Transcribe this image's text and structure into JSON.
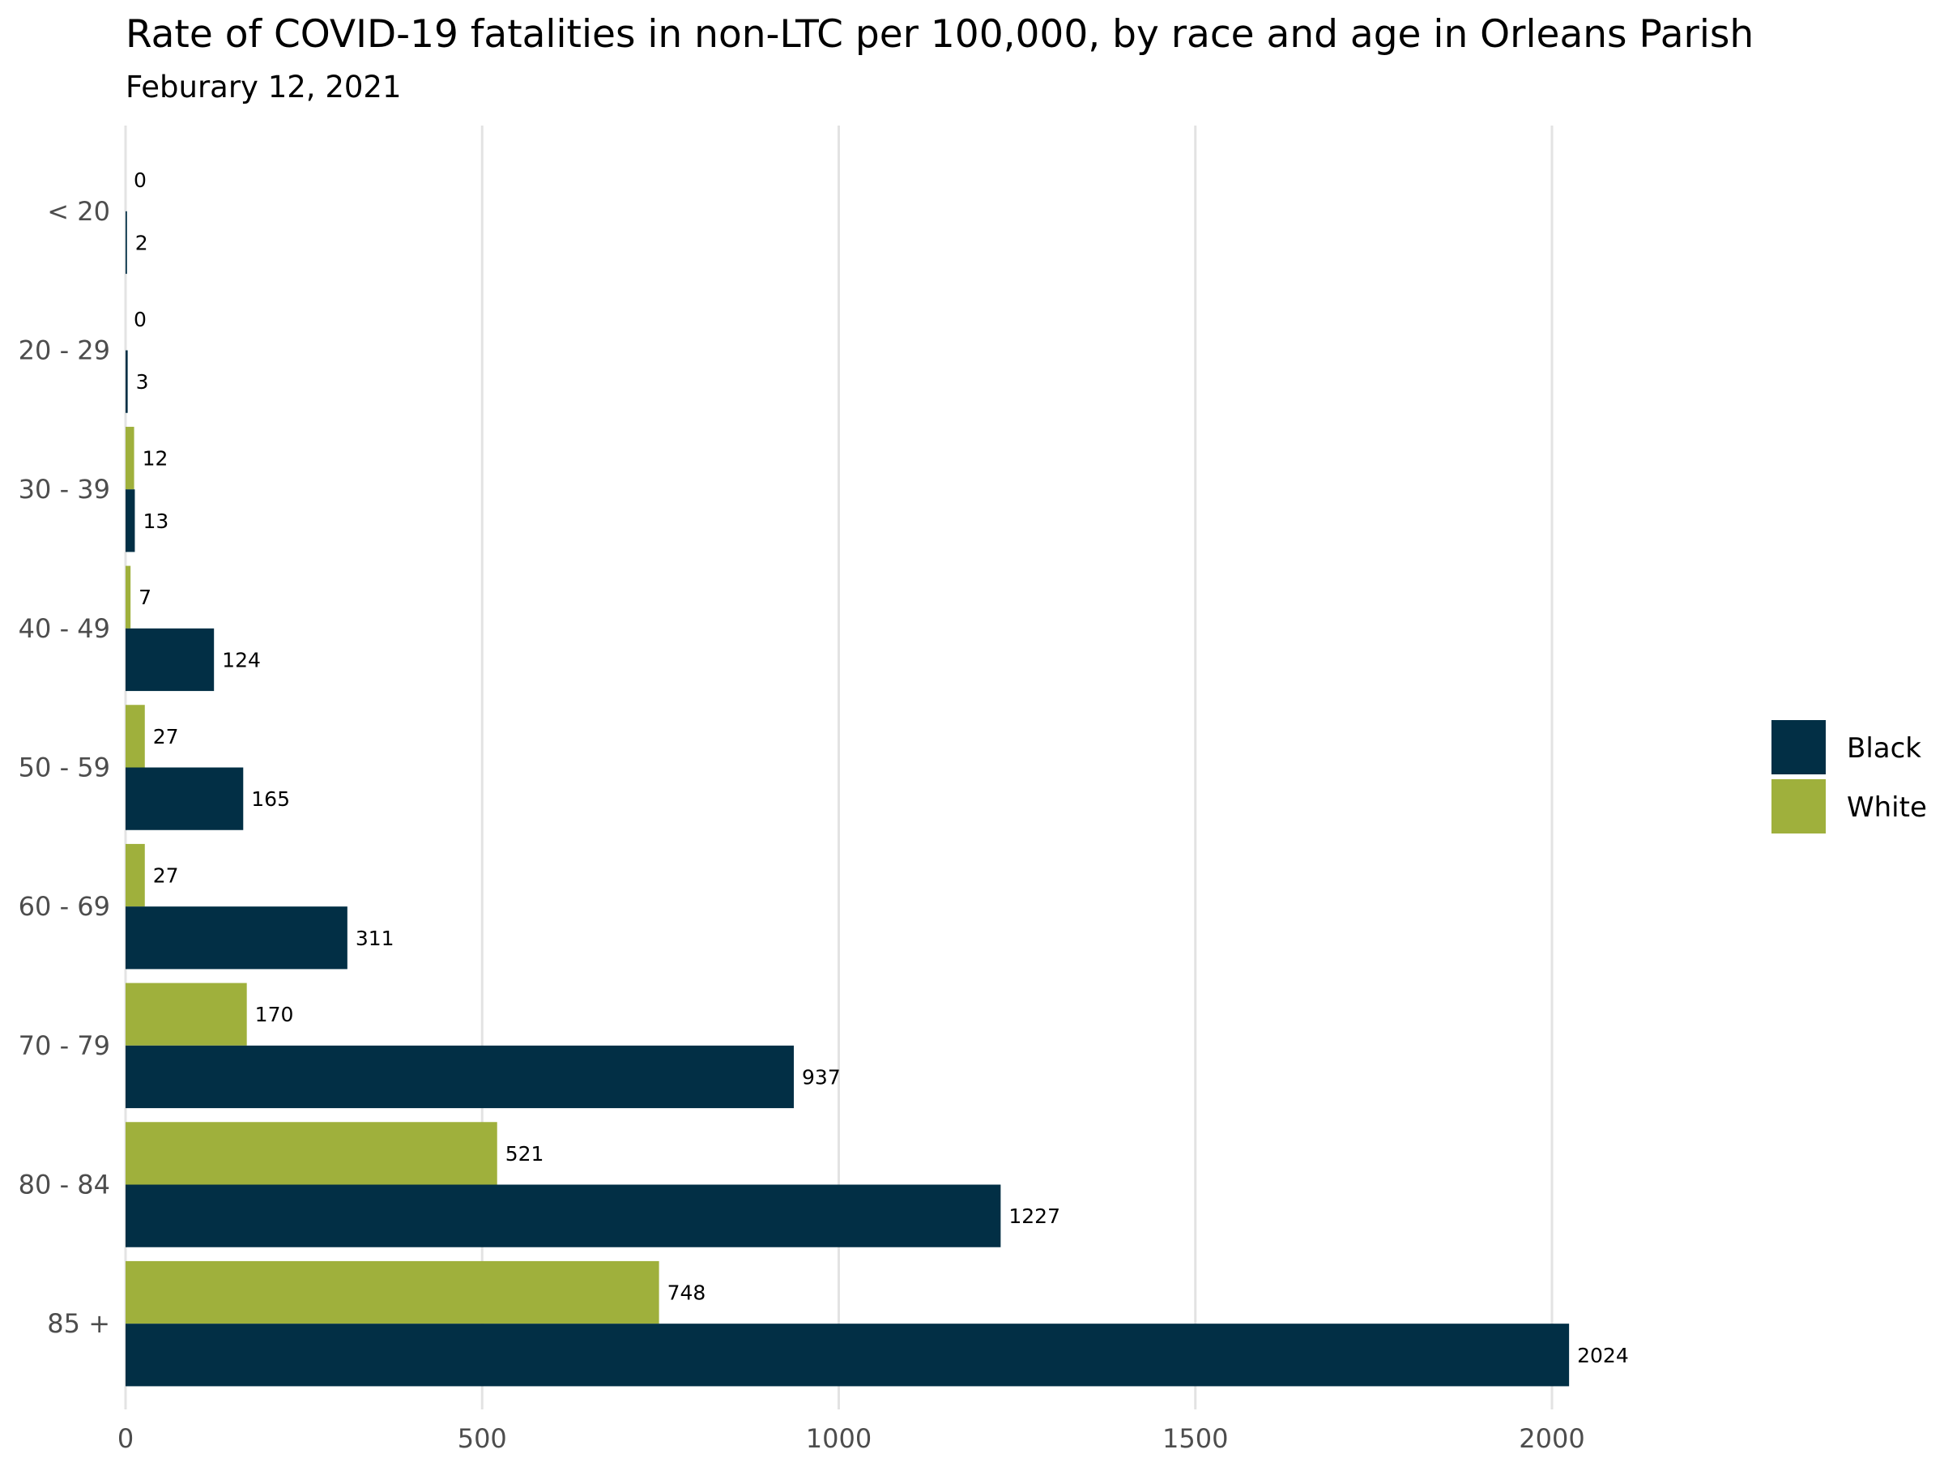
{
  "chart_data": {
    "type": "bar",
    "orientation": "horizontal",
    "title": "Rate of COVID-19 fatalities in non-LTC per 100,000, by race and age in Orleans Parish",
    "subtitle": "Feburary 12, 2021",
    "xlabel": "",
    "ylabel": "",
    "categories": [
      "< 20",
      "20 - 29",
      "30 - 39",
      "40 - 49",
      "50 - 59",
      "60 - 69",
      "70 - 79",
      "80 - 84",
      "85 +"
    ],
    "series": [
      {
        "name": "White",
        "color": "#9fb03c",
        "values": [
          0,
          0,
          12,
          7,
          27,
          27,
          170,
          521,
          748
        ]
      },
      {
        "name": "Black",
        "color": "#022f45",
        "values": [
          2,
          3,
          13,
          124,
          165,
          311,
          937,
          1227,
          2024
        ]
      }
    ],
    "xlim": [
      0,
      2150
    ],
    "xticks": [
      0,
      500,
      1000,
      1500,
      2000
    ],
    "grid": "vertical-major",
    "legend": {
      "position": "right",
      "entries": [
        {
          "name": "Black",
          "color": "#022f45"
        },
        {
          "name": "White",
          "color": "#9fb03c"
        }
      ]
    },
    "data_labels": true
  }
}
